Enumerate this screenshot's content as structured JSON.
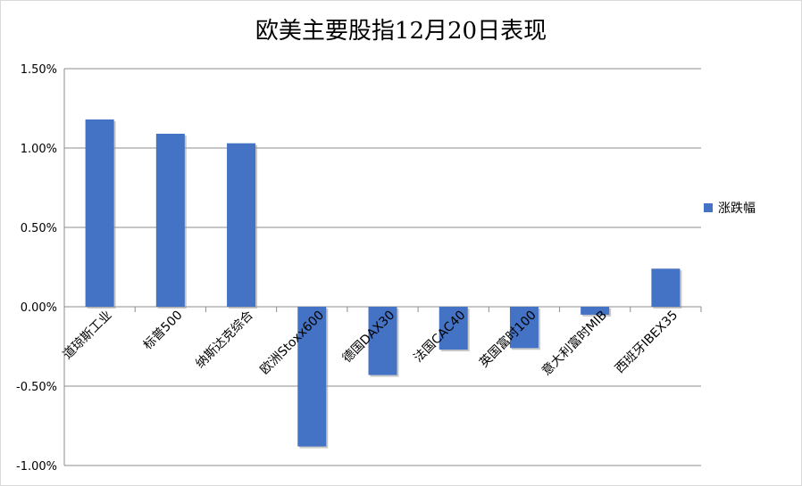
{
  "chart_data": {
    "type": "bar",
    "title": "欧美主要股指12月20日表现",
    "categories": [
      "道琼斯工业",
      "标普500",
      "纳斯达克综合",
      "欧洲Stoxx600",
      "德国DAX30",
      "法国CAC40",
      "英国富时100",
      "意大利富时MIB",
      "西班牙IBEX35"
    ],
    "series": [
      {
        "name": "涨跌幅",
        "values": [
          1.18,
          1.09,
          1.03,
          -0.88,
          -0.43,
          -0.27,
          -0.26,
          -0.05,
          0.24
        ],
        "color": "#4472C4"
      }
    ],
    "ylim": [
      -1.0,
      1.5
    ],
    "yticks": [
      "1.50%",
      "1.00%",
      "0.50%",
      "0.00%",
      "-0.50%",
      "-1.00%"
    ],
    "ytick_values": [
      1.5,
      1.0,
      0.5,
      0.0,
      -0.5,
      -1.0
    ],
    "grid": true,
    "legend": "right"
  }
}
